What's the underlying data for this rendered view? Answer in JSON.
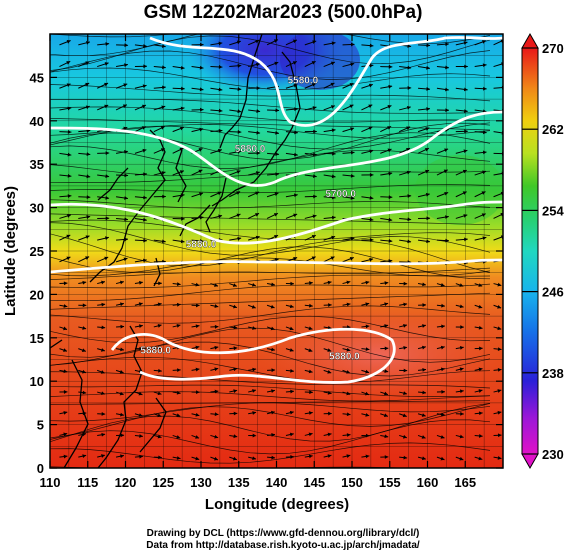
{
  "title": "GSM 12Z02Mar2023 (500.0hPa)",
  "map": {
    "x_label": "Longitude (degrees)",
    "y_label": "Latitude  (degrees)",
    "x_range": [
      110,
      170
    ],
    "y_range": [
      0,
      50
    ],
    "x_ticks": [
      110,
      115,
      120,
      125,
      130,
      135,
      140,
      145,
      150,
      155,
      160,
      165
    ],
    "y_ticks": [
      0,
      5,
      10,
      15,
      20,
      25,
      30,
      35,
      40,
      45
    ],
    "contour_labels": [
      {
        "text": "5580.0",
        "lon": 143.5,
        "lat": 44.3
      },
      {
        "text": "5700.0",
        "lon": 148.5,
        "lat": 31.2
      },
      {
        "text": "5880.0",
        "lon": 136.5,
        "lat": 36.4
      },
      {
        "text": "5880.0",
        "lon": 130.0,
        "lat": 25.4
      },
      {
        "text": "5880.0",
        "lon": 124.0,
        "lat": 13.2
      },
      {
        "text": "5880.0",
        "lon": 149.0,
        "lat": 12.5
      }
    ]
  },
  "colorbar": {
    "min": 230,
    "max": 270,
    "ticks": [
      230,
      238,
      246,
      254,
      262,
      270
    ],
    "colors": [
      "#e012c8",
      "#7a1ad8",
      "#1626d8",
      "#1688e8",
      "#18c8e8",
      "#28d890",
      "#30c830",
      "#a8e020",
      "#f0e010",
      "#f09818",
      "#e84a18",
      "#e81818"
    ]
  },
  "credits": {
    "line1": "Drawing by DCL (https://www.gfd-dennou.org/library/dcl/)",
    "line2": "Data from http://database.rish.kyoto-u.ac.jp/arch/jmadata/"
  }
}
